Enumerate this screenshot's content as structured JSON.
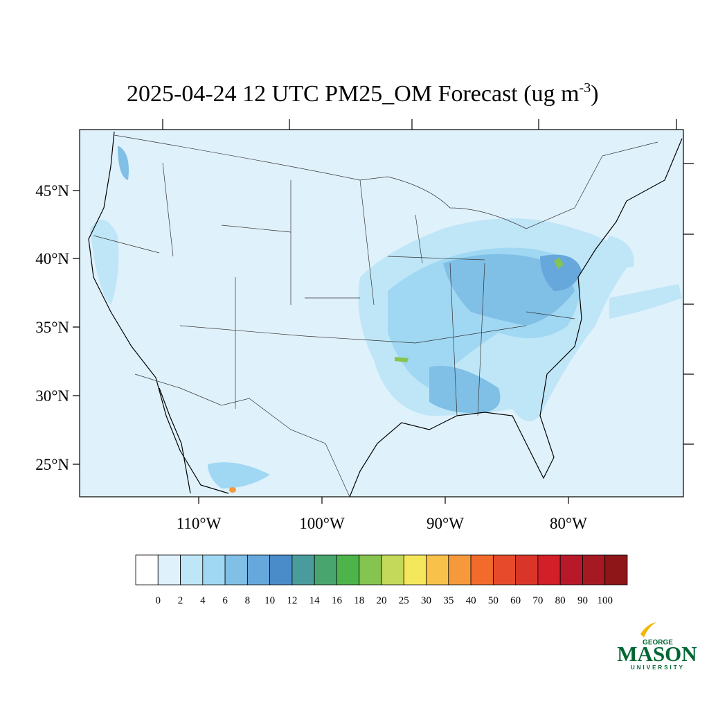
{
  "map": {
    "title": "2025-04-24 12 UTC PM25_OM Forecast (ug m",
    "title_sup": "-3",
    "title_end": ")",
    "lat_labels": [
      "45°N",
      "40°N",
      "35°N",
      "30°N",
      "25°N"
    ],
    "lon_labels": [
      "110°W",
      "100°W",
      "90°W",
      "80°W"
    ]
  },
  "colorbar": {
    "levels": [
      0,
      2,
      4,
      6,
      8,
      10,
      12,
      14,
      16,
      18,
      20,
      25,
      30,
      35,
      40,
      50,
      60,
      70,
      80,
      90,
      100
    ],
    "colors": [
      "#ffffff",
      "#dff1fb",
      "#bfe6f7",
      "#a0d8f3",
      "#80bfe6",
      "#67a8dc",
      "#4a8bc9",
      "#4a9c9c",
      "#48a56e",
      "#4cb44a",
      "#86c450",
      "#c4d85a",
      "#f5e75b",
      "#f8c14a",
      "#f6993c",
      "#f26a2c",
      "#e64a2a",
      "#d93528",
      "#d21f28",
      "#b8192a",
      "#a51a22",
      "#8e1619"
    ]
  },
  "logo": {
    "top": "GEORGE",
    "name": "MASON",
    "bottom": "UNIVERSITY"
  }
}
